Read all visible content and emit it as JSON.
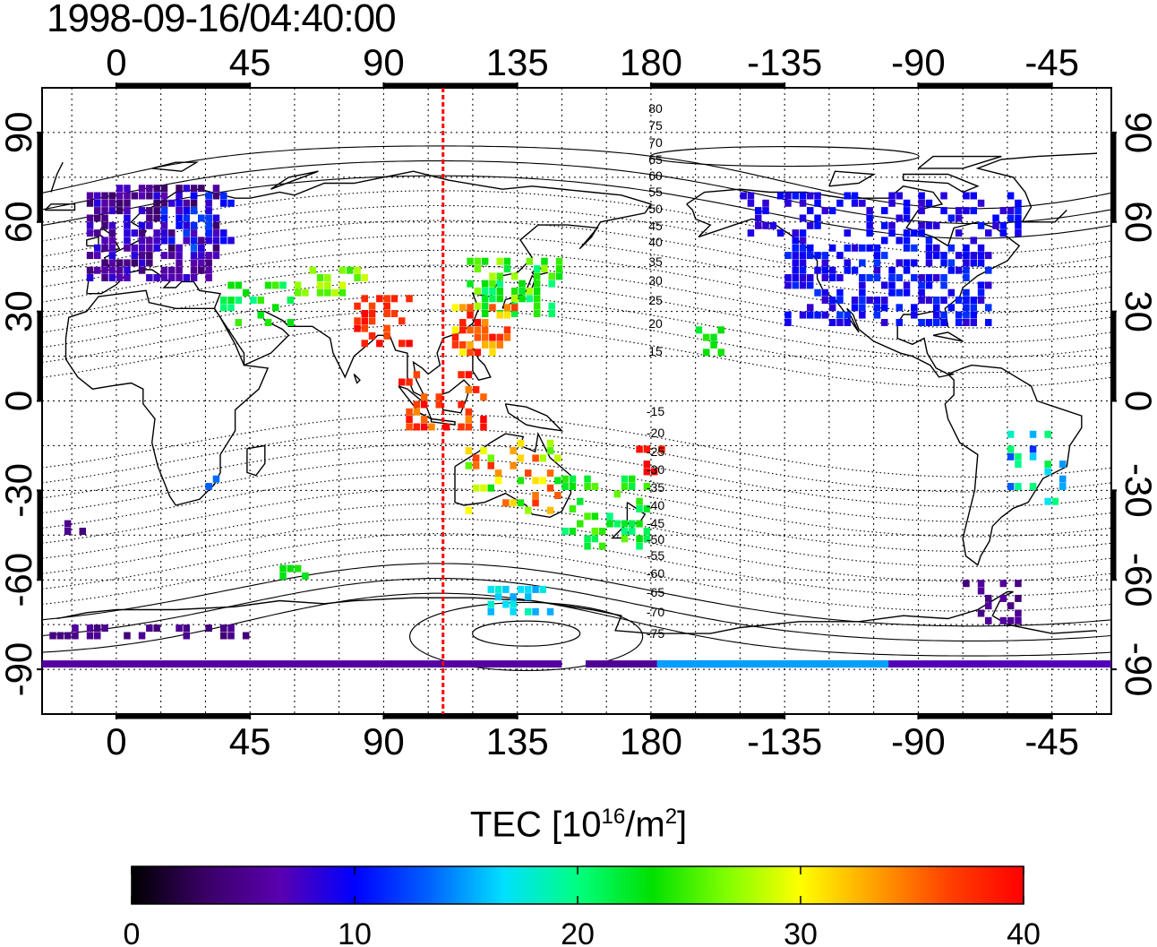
{
  "title": "1998-09-16/04:40:00",
  "map": {
    "lon_ticks": [
      "0",
      "45",
      "90",
      "135",
      "180",
      "-135",
      "-90",
      "-45"
    ],
    "lat_ticks": [
      "90",
      "60",
      "30",
      "0",
      "-30",
      "-60",
      "-90"
    ],
    "marker_longitude": 110,
    "magnetic_latitude_labels_north": [
      "80",
      "75",
      "70",
      "65",
      "60",
      "55",
      "50",
      "45",
      "40",
      "35",
      "30",
      "25",
      "20",
      "15"
    ],
    "magnetic_latitude_labels_south": [
      "-15",
      "-20",
      "-25",
      "-30",
      "-35",
      "-40",
      "-45",
      "-50",
      "-55",
      "-60",
      "-65",
      "-70",
      "-75"
    ],
    "colors": {
      "marker_line": "#ff0000",
      "frame": "#000000"
    }
  },
  "colorbar": {
    "title_main": "TEC  [10",
    "title_exp": "16",
    "title_unit": "/m",
    "title_unit_exp": "2",
    "title_close": "]",
    "min": 0,
    "max": 40,
    "tick_labels": [
      "0",
      "10",
      "20",
      "30",
      "40"
    ],
    "colormap": [
      "#000000",
      "#3a0066",
      "#5a00b0",
      "#0000ff",
      "#0060ff",
      "#00e0ff",
      "#00ff80",
      "#00e000",
      "#80ff00",
      "#ffff00",
      "#ffa000",
      "#ff4000",
      "#ff0000"
    ]
  }
}
